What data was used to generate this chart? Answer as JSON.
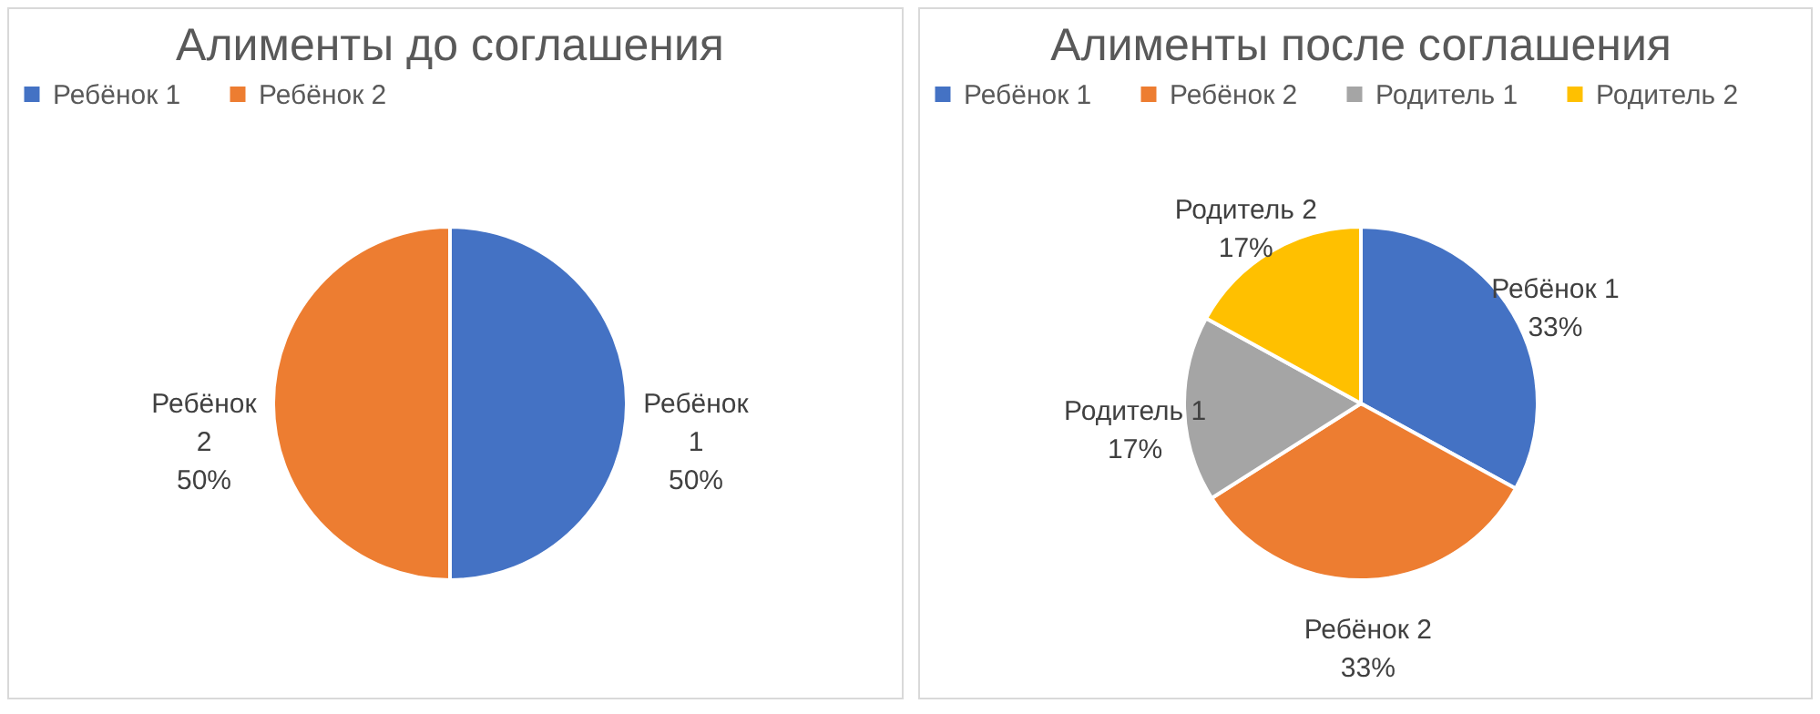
{
  "chart_data": [
    {
      "type": "pie",
      "title": "Алименты до соглашения",
      "categories": [
        "Ребёнок 1",
        "Ребёнок 2"
      ],
      "values": [
        50,
        50
      ],
      "colors": [
        "#4472c4",
        "#ed7d31"
      ],
      "value_labels": [
        "Ребёнок\n1\n50%",
        "Ребёнок\n2\n50%"
      ],
      "legend": "top"
    },
    {
      "type": "pie",
      "title": "Алименты после соглашения",
      "categories": [
        "Ребёнок 1",
        "Ребёнок 2",
        "Родитель 1",
        "Родитель 2"
      ],
      "values": [
        33,
        33,
        17,
        17
      ],
      "colors": [
        "#4472c4",
        "#ed7d31",
        "#a5a5a5",
        "#ffc000"
      ],
      "value_labels": [
        "Ребёнок 1\n33%",
        "Ребёнок 2\n33%",
        "Родитель 1\n17%",
        "Родитель 2\n17%"
      ],
      "legend": "top"
    }
  ]
}
